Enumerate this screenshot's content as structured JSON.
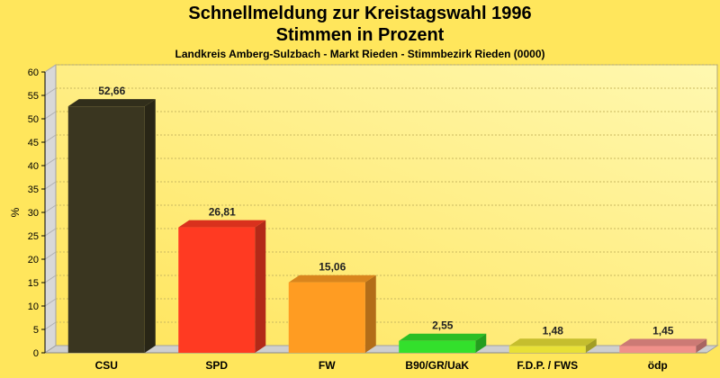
{
  "header": {
    "title_line1": "Schnellmeldung zur Kreistagswahl 1996",
    "title_line2": "Stimmen in Prozent",
    "subtitle": "Landkreis Amberg-Sulzbach - Markt Rieden - Stimmbezirk Rieden (0000)"
  },
  "chart_data": {
    "type": "bar",
    "title": "Schnellmeldung zur Kreistagswahl 1996",
    "subtitle": "Stimmen in Prozent",
    "ylabel": "%",
    "xlabel": "",
    "ylim": [
      0,
      60
    ],
    "yticks": [
      0,
      5,
      10,
      15,
      20,
      25,
      30,
      35,
      40,
      45,
      50,
      55,
      60
    ],
    "grid": true,
    "categories": [
      "CSU",
      "SPD",
      "FW",
      "B90/GR/UaK",
      "F.D.P. / FWS",
      "ödp"
    ],
    "values": [
      52.66,
      26.81,
      15.06,
      2.55,
      1.48,
      1.45
    ],
    "value_labels": [
      "52,66",
      "26,81",
      "15,06",
      "2,55",
      "1,48",
      "1,45"
    ],
    "colors": [
      "#3a3620",
      "#ff3a22",
      "#ff9c22",
      "#33e02c",
      "#e8e036",
      "#f0908a"
    ]
  }
}
